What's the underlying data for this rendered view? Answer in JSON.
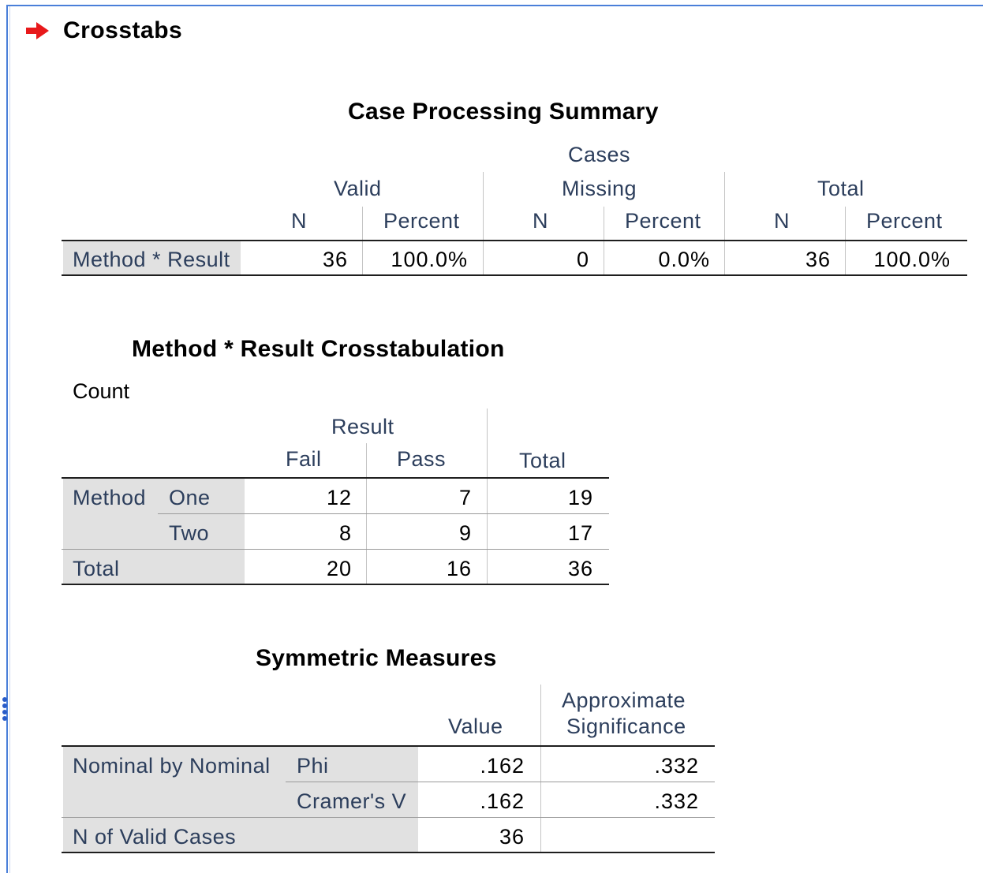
{
  "section": {
    "title": "Crosstabs"
  },
  "case_summary": {
    "title": "Case Processing Summary",
    "cases_header": "Cases",
    "groups": [
      "Valid",
      "Missing",
      "Total"
    ],
    "subheaders": [
      "N",
      "Percent",
      "N",
      "Percent",
      "N",
      "Percent"
    ],
    "row_label": "Method * Result",
    "values": [
      "36",
      "100.0%",
      "0",
      "0.0%",
      "36",
      "100.0%"
    ]
  },
  "crosstab": {
    "title": "Method * Result Crosstabulation",
    "statistic": "Count",
    "col_group": "Result",
    "columns": [
      "Fail",
      "Pass"
    ],
    "total_header": "Total",
    "row_group": "Method",
    "rows": [
      {
        "label": "One",
        "values": [
          "12",
          "7",
          "19"
        ]
      },
      {
        "label": "Two",
        "values": [
          "8",
          "9",
          "17"
        ]
      }
    ],
    "total_row": {
      "label": "Total",
      "values": [
        "20",
        "16",
        "36"
      ]
    }
  },
  "symmetric": {
    "title": "Symmetric Measures",
    "col_value": "Value",
    "col_sig_line1": "Approximate",
    "col_sig_line2": "Significance",
    "group_label": "Nominal by Nominal",
    "rows": [
      {
        "label": "Phi",
        "value": ".162",
        "sig": ".332"
      },
      {
        "label": "Cramer's V",
        "value": ".162",
        "sig": ".332"
      }
    ],
    "valid_cases_label": "N of Valid Cases",
    "valid_cases_value": "36"
  },
  "colors": {
    "frame": "#4a7fd9",
    "arrow": "#e8191b",
    "label_bg": "#e1e1e1",
    "header_text": "#2c3e5c"
  }
}
